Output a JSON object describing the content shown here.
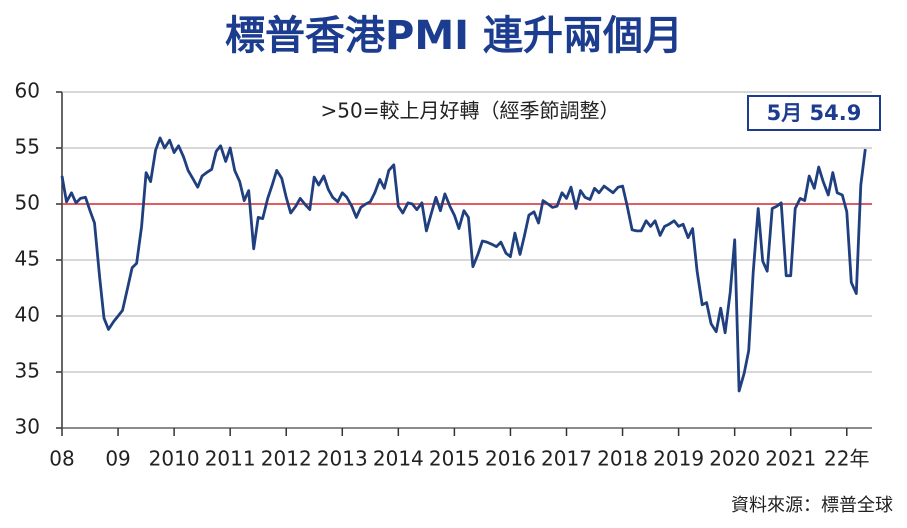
{
  "chart_data": {
    "type": "line",
    "title": "標普香港PMI 連升兩個月",
    "subtitle": ">50=較上月好轉（經季節調整）",
    "annotation": "5月  54.9",
    "source": "資料來源：標普全球",
    "xlim": [
      2008,
      2022.45
    ],
    "xticks": [
      {
        "value": 2008,
        "label": "08"
      },
      {
        "value": 2009,
        "label": "09"
      },
      2010,
      2011,
      2012,
      2013,
      2014,
      2015,
      2016,
      2017,
      2018,
      2019,
      2020,
      2021,
      {
        "value": 2022,
        "label": "22年"
      }
    ],
    "ylim": [
      30,
      60
    ],
    "yticks": [
      30,
      35,
      40,
      45,
      50,
      55,
      60
    ],
    "reference_line": {
      "value": 50,
      "color": "#d9262e"
    },
    "x": [
      2008,
      2008.08,
      2008.17,
      2008.25,
      2008.33,
      2008.42,
      2008.5,
      2008.58,
      2008.67,
      2008.75,
      2008.83,
      2008.92,
      2009,
      2009.08,
      2009.17,
      2009.25,
      2009.33,
      2009.42,
      2009.5,
      2009.58,
      2009.67,
      2009.75,
      2009.83,
      2009.92,
      2010,
      2010.08,
      2010.17,
      2010.25,
      2010.33,
      2010.42,
      2010.5,
      2010.58,
      2010.67,
      2010.75,
      2010.83,
      2010.92,
      2011,
      2011.08,
      2011.17,
      2011.25,
      2011.33,
      2011.42,
      2011.5,
      2011.58,
      2011.67,
      2011.75,
      2011.83,
      2011.92,
      2012,
      2012.08,
      2012.17,
      2012.25,
      2012.33,
      2012.42,
      2012.5,
      2012.58,
      2012.67,
      2012.75,
      2012.83,
      2012.92,
      2013,
      2013.08,
      2013.17,
      2013.25,
      2013.33,
      2013.42,
      2013.5,
      2013.58,
      2013.67,
      2013.75,
      2013.83,
      2013.92,
      2014,
      2014.08,
      2014.17,
      2014.25,
      2014.33,
      2014.42,
      2014.5,
      2014.58,
      2014.67,
      2014.75,
      2014.83,
      2014.92,
      2015,
      2015.08,
      2015.17,
      2015.25,
      2015.33,
      2015.42,
      2015.5,
      2015.58,
      2015.67,
      2015.75,
      2015.83,
      2015.92,
      2016,
      2016.08,
      2016.17,
      2016.25,
      2016.33,
      2016.42,
      2016.5,
      2016.58,
      2016.67,
      2016.75,
      2016.83,
      2016.92,
      2017,
      2017.08,
      2017.17,
      2017.25,
      2017.33,
      2017.42,
      2017.5,
      2017.58,
      2017.67,
      2017.75,
      2017.83,
      2017.92,
      2018,
      2018.08,
      2018.17,
      2018.25,
      2018.33,
      2018.42,
      2018.5,
      2018.58,
      2018.67,
      2018.75,
      2018.83,
      2018.92,
      2019,
      2019.08,
      2019.17,
      2019.25,
      2019.33,
      2019.42,
      2019.5,
      2019.58,
      2019.67,
      2019.75,
      2019.83,
      2019.92,
      2020,
      2020.08,
      2020.17,
      2020.25,
      2020.33,
      2020.42,
      2020.5,
      2020.58,
      2020.67,
      2020.75,
      2020.83,
      2020.92,
      2021,
      2021.08,
      2021.17,
      2021.25,
      2021.33,
      2021.42,
      2021.5,
      2021.58,
      2021.67,
      2021.75,
      2021.83,
      2021.92,
      2022,
      2022.08,
      2022.17,
      2022.25,
      2022.33
    ],
    "series": [
      {
        "color": "#1f3f7f",
        "values": [
          52.5,
          50.2,
          51.0,
          50.1,
          50.5,
          50.6,
          49.4,
          48.3,
          43.5,
          39.8,
          38.8,
          39.5,
          40.0,
          40.5,
          42.5,
          44.3,
          44.7,
          48.0,
          52.8,
          52.0,
          54.8,
          55.9,
          55.0,
          55.7,
          54.6,
          55.2,
          54.2,
          53.0,
          52.3,
          51.5,
          52.5,
          52.8,
          53.1,
          54.7,
          55.2,
          53.8,
          55.0,
          53.0,
          52.0,
          50.3,
          51.2,
          46.0,
          48.8,
          48.7,
          50.5,
          51.7,
          53.0,
          52.3,
          50.6,
          49.2,
          49.8,
          50.5,
          50.0,
          49.5,
          52.4,
          51.7,
          52.5,
          51.3,
          50.6,
          50.2,
          51.0,
          50.6,
          49.8,
          48.8,
          49.7,
          50.0,
          50.2,
          51.0,
          52.2,
          51.4,
          53.0,
          53.5,
          49.8,
          49.2,
          50.1,
          50.0,
          49.5,
          50.1,
          47.6,
          49.0,
          50.6,
          49.4,
          50.9,
          49.8,
          49.0,
          47.8,
          49.4,
          48.8,
          44.4,
          45.5,
          46.7,
          46.6,
          46.4,
          46.2,
          46.6,
          45.6,
          45.3,
          47.4,
          45.5,
          47.2,
          49.0,
          49.3,
          48.3,
          50.3,
          50.0,
          49.7,
          49.8,
          51.0,
          50.5,
          51.5,
          49.6,
          51.2,
          50.6,
          50.4,
          51.4,
          51.0,
          51.6,
          51.3,
          51.0,
          51.5,
          51.6,
          49.9,
          47.7,
          47.6,
          47.6,
          48.5,
          48.0,
          48.5,
          47.2,
          48.0,
          48.2,
          48.5,
          48.0,
          48.2,
          47.0,
          47.8,
          44.0,
          41.0,
          41.2,
          39.3,
          38.6,
          40.7,
          38.5,
          42.1,
          46.8,
          33.3,
          34.9,
          36.9,
          43.9,
          49.6,
          44.9,
          44.0,
          49.6,
          49.8,
          50.1,
          43.6,
          43.6,
          49.6,
          50.5,
          50.3,
          52.5,
          51.4,
          53.3,
          52.0,
          50.8,
          52.8,
          51.0,
          50.8,
          49.3,
          43.0,
          42.0,
          51.7,
          54.9
        ]
      }
    ]
  }
}
